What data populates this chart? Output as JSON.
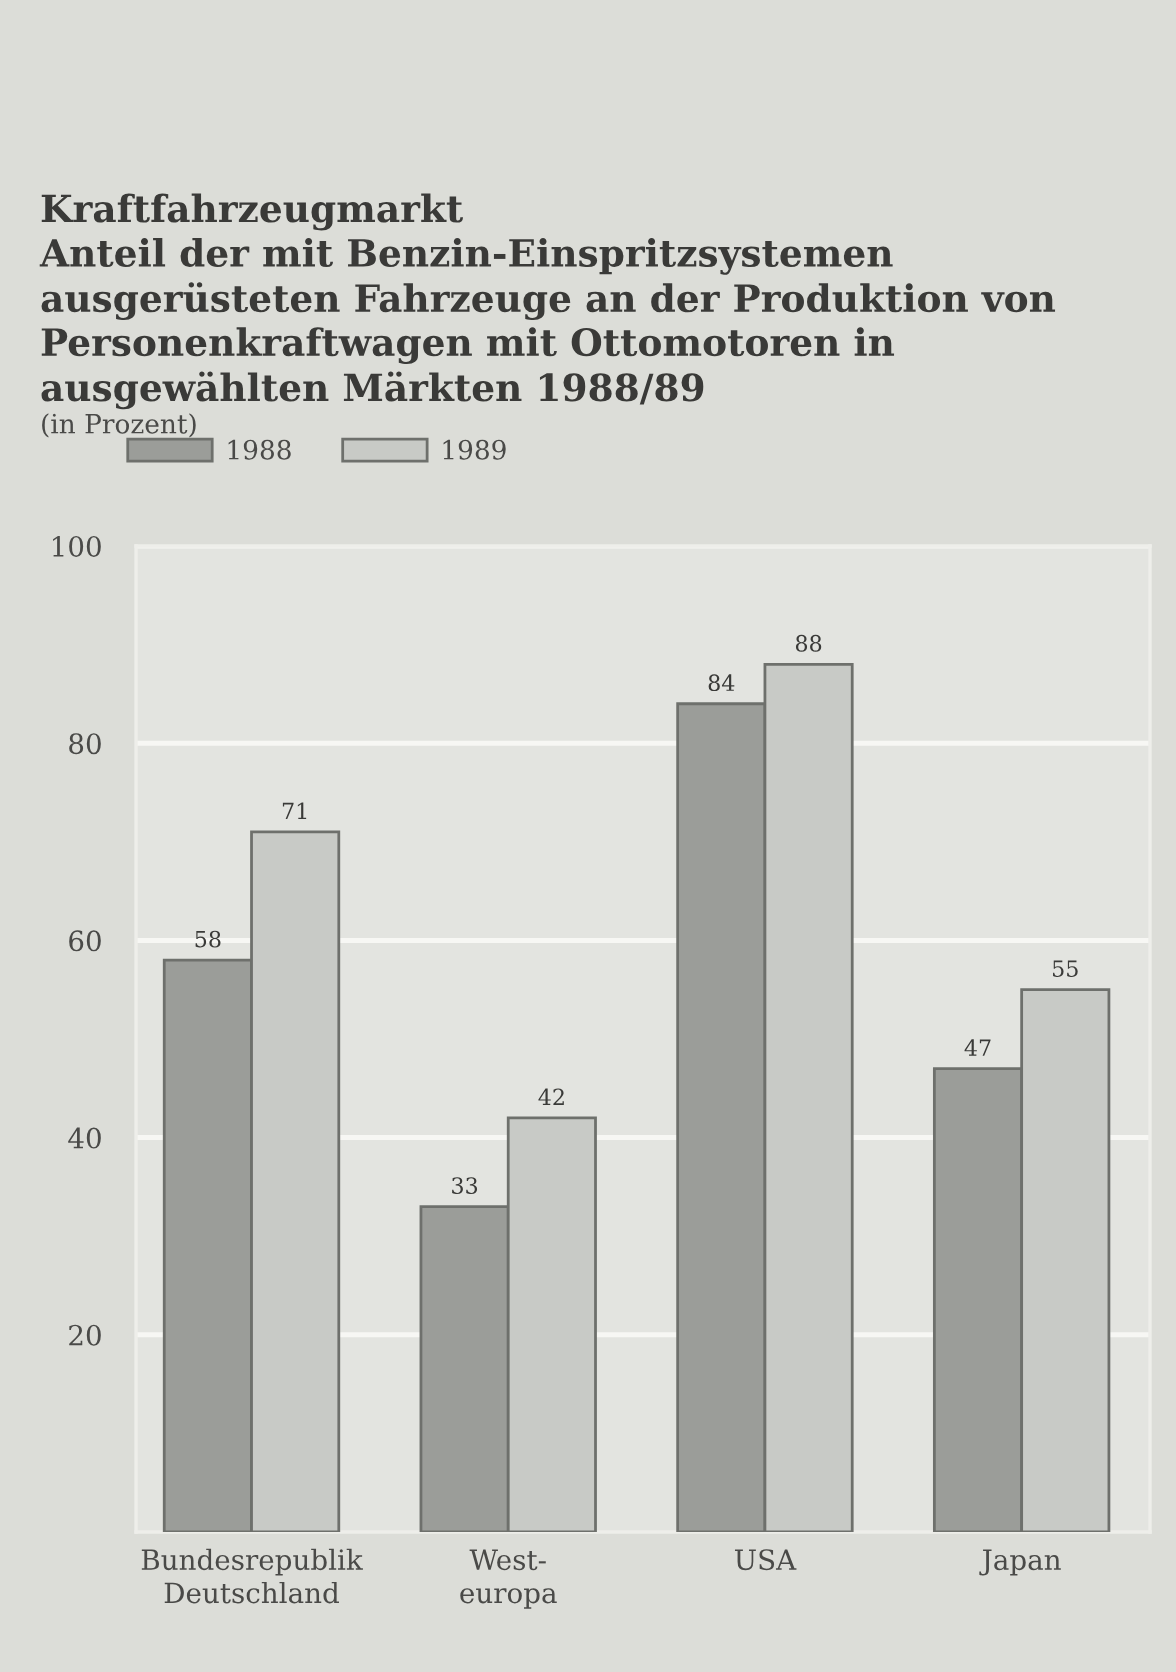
{
  "chart_data": {
    "type": "bar",
    "title": "Kraftfahrzeugmarkt",
    "subtitle": "Anteil der mit Benzin-Einspritzsystemen\nausgerüsteten Fahrzeuge an der Produktion von\nPersonenkraftwagen mit Ottomotoren in\nausgewählten Märkten 1988/89",
    "ylabel": "(in Prozent)",
    "categories": [
      "Bundesrepublik\nDeutschland",
      "West-\neuropa",
      "USA",
      "Japan"
    ],
    "series": [
      {
        "name": "1988",
        "color": "#9b9d99",
        "values": [
          58,
          33,
          84,
          47
        ]
      },
      {
        "name": "1989",
        "color": "#c8cac6",
        "values": [
          71,
          42,
          88,
          55
        ]
      }
    ],
    "ylim": [
      0,
      100
    ],
    "yticks": [
      20,
      40,
      60,
      80,
      100
    ],
    "grid": "y",
    "legend": "top left",
    "data_labels": true
  }
}
